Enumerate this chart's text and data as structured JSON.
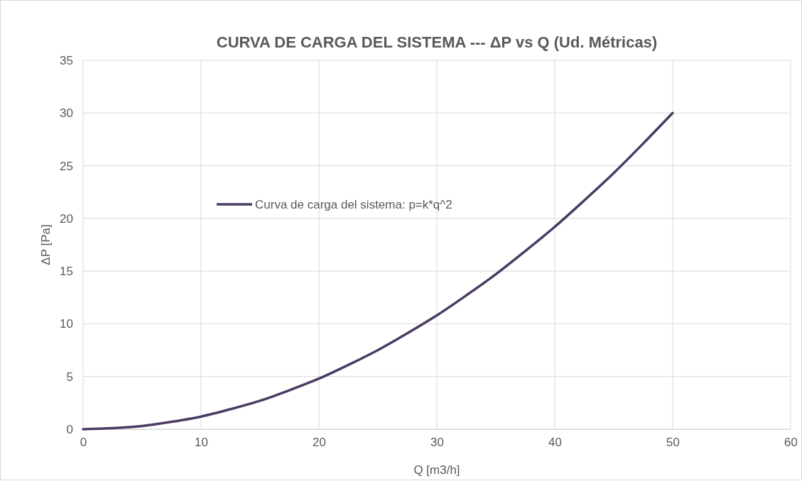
{
  "chart_data": {
    "type": "line",
    "title": "CURVA DE CARGA DEL SISTEMA --- ΔP vs Q (Ud. Métricas)",
    "xlabel": "Q [m3/h]",
    "ylabel": "ΔP [Pa]",
    "x": [
      0,
      2.5,
      5,
      7.5,
      10,
      12.5,
      15,
      17.5,
      20,
      22.5,
      25,
      27.5,
      30,
      32.5,
      35,
      37.5,
      40,
      42.5,
      45,
      47.5,
      50
    ],
    "series": [
      {
        "name": "Curva de carga del sistema: p=k*q^2",
        "color": "#4b3b63",
        "values": [
          0,
          0.1,
          0.3,
          0.7,
          1.2,
          1.9,
          2.7,
          3.7,
          4.8,
          6.1,
          7.5,
          9.1,
          10.8,
          12.7,
          14.7,
          16.9,
          19.2,
          21.7,
          24.3,
          27.1,
          30
        ]
      }
    ],
    "xlim": [
      0,
      60
    ],
    "xticks": [
      0,
      10,
      20,
      30,
      40,
      50,
      60
    ],
    "ylim": [
      0,
      35
    ],
    "yticks": [
      0,
      5,
      10,
      15,
      20,
      25,
      30,
      35
    ],
    "grid": true,
    "legend": "left",
    "marker": "none",
    "line_style": "solid"
  }
}
